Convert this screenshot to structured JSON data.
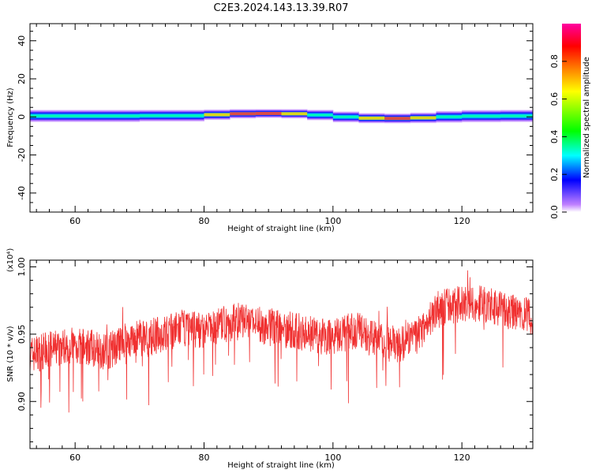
{
  "title": "C2E3.2024.143.13.39.R07",
  "chart_data": [
    {
      "type": "heatmap",
      "xlabel": "Height of straight line (km)",
      "ylabel": "Frequency (Hz)",
      "xlim": [
        53,
        131
      ],
      "ylim": [
        -50,
        49
      ],
      "xticks": [
        60,
        80,
        100,
        120
      ],
      "yticks": [
        -40,
        -20,
        0,
        20,
        40
      ],
      "ytick_labels": [
        "-40",
        "-20",
        "0",
        "20",
        "40"
      ],
      "colorbar": {
        "label": "Normalized spectral amplitude",
        "ticks": [
          "0.0",
          "0.2",
          "0.4",
          "0.6",
          "0.8"
        ],
        "tick_values": [
          0,
          0.2,
          0.4,
          0.6,
          0.8
        ],
        "range": [
          0,
          1
        ],
        "colors": [
          "#ffffff",
          "#c080ff",
          "#0000ff",
          "#00ffff",
          "#00ff00",
          "#ffff00",
          "#ff8000",
          "#ff0000",
          "#ff00a0"
        ]
      },
      "band": {
        "height_km": [
          53,
          60,
          70,
          80,
          84,
          88,
          92,
          96,
          100,
          104,
          108,
          112,
          116,
          120,
          126,
          131
        ],
        "center_freq_hz": [
          0.5,
          0.5,
          0.5,
          0.8,
          1.5,
          1.8,
          1.8,
          1.5,
          0.5,
          -0.5,
          -0.8,
          -0.8,
          -0.2,
          0.3,
          0.5,
          0.5
        ],
        "half_width_hz": [
          3.5,
          3.5,
          3.5,
          3.2,
          2.8,
          2.5,
          2.5,
          2.8,
          3.2,
          3.0,
          2.8,
          2.8,
          3.2,
          3.5,
          3.5,
          3.5
        ],
        "peak_amplitude": [
          0.5,
          0.5,
          0.5,
          0.55,
          0.75,
          0.85,
          0.85,
          0.7,
          0.5,
          0.6,
          0.8,
          0.8,
          0.55,
          0.5,
          0.5,
          0.5
        ]
      }
    },
    {
      "type": "line",
      "xlabel": "Height of straight line (km)",
      "ylabel": "SNR (10 * v/v)",
      "y_exponent_label": "(x10⁴)",
      "xlim": [
        53,
        131
      ],
      "ylim": [
        0.865,
        1.005
      ],
      "xticks": [
        60,
        80,
        100,
        120
      ],
      "yticks": [
        0.9,
        0.95,
        1.0
      ],
      "ytick_labels": [
        "0.90",
        "0.95",
        "1.00"
      ],
      "line_color": "#f03030",
      "series": [
        {
          "x": [
            53,
            56,
            59,
            62,
            65,
            68,
            71,
            74,
            77,
            80,
            83,
            86,
            89,
            92,
            95,
            98,
            101,
            104,
            107,
            110,
            113,
            116,
            119,
            122,
            125,
            128,
            131
          ],
          "values": [
            0.935,
            0.938,
            0.942,
            0.94,
            0.937,
            0.945,
            0.948,
            0.95,
            0.955,
            0.953,
            0.957,
            0.96,
            0.956,
            0.954,
            0.952,
            0.948,
            0.95,
            0.953,
            0.944,
            0.942,
            0.948,
            0.968,
            0.972,
            0.973,
            0.97,
            0.966,
            0.962
          ]
        }
      ]
    }
  ]
}
